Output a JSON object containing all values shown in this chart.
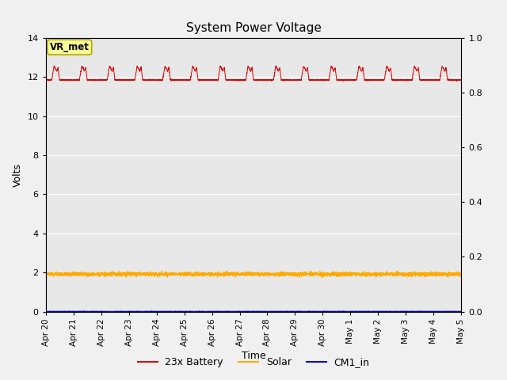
{
  "title": "System Power Voltage",
  "xlabel": "Time",
  "ylabel": "Volts",
  "ylim_left": [
    0,
    14
  ],
  "ylim_right": [
    0.0,
    1.0
  ],
  "yticks_left": [
    0,
    2,
    4,
    6,
    8,
    10,
    12,
    14
  ],
  "yticks_right": [
    0.0,
    0.2,
    0.4,
    0.6,
    0.8,
    1.0
  ],
  "background_color": "#e8e8e8",
  "figure_color": "#f0f0f0",
  "grid_color": "#ffffff",
  "annotation_text": "VR_met",
  "annotation_bg": "#ffff99",
  "annotation_border": "#aaaa00",
  "line_battery_color": "#dd0000",
  "line_solar_color": "#ffaa00",
  "line_cm1_color": "#0000bb",
  "legend_labels": [
    "23x Battery",
    "Solar",
    "CM1_in"
  ],
  "total_days": 15,
  "battery_base": 11.85,
  "battery_peak1": 12.55,
  "battery_peak2": 12.45,
  "solar_base": 1.92,
  "cm1_base": 0.01,
  "tick_labels": [
    "Apr 20",
    "Apr 21",
    "Apr 22",
    "Apr 23",
    "Apr 24",
    "Apr 25",
    "Apr 26",
    "Apr 27",
    "Apr 28",
    "Apr 29",
    "Apr 30",
    "May 1",
    "May 2",
    "May 3",
    "May 4",
    "May 5"
  ]
}
